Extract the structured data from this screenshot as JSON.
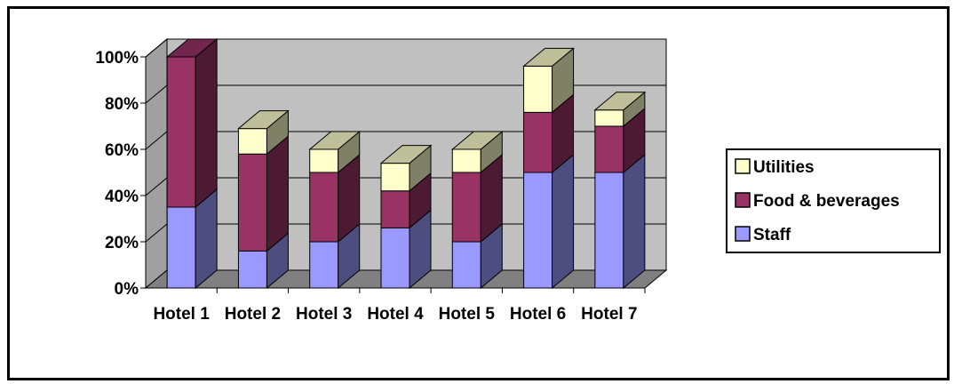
{
  "chart_data": {
    "type": "bar",
    "stacked": true,
    "three_d": true,
    "categories": [
      "Hotel 1",
      "Hotel 2",
      "Hotel 3",
      "Hotel 4",
      "Hotel 5",
      "Hotel 6",
      "Hotel 7"
    ],
    "series": [
      {
        "name": "Staff",
        "values": [
          35,
          16,
          20,
          26,
          20,
          50,
          50
        ],
        "color": "#9999ff"
      },
      {
        "name": "Food & beverages",
        "values": [
          65,
          42,
          30,
          16,
          30,
          26,
          20
        ],
        "color": "#993366"
      },
      {
        "name": "Utilities",
        "values": [
          0,
          11,
          10,
          12,
          10,
          20,
          7
        ],
        "color": "#ffffcc"
      }
    ],
    "ylim": [
      0,
      100
    ],
    "yticks": [
      "0%",
      "20%",
      "40%",
      "60%",
      "80%",
      "100%"
    ],
    "legend": {
      "position": "right",
      "order": [
        "Utilities",
        "Food & beverages",
        "Staff"
      ]
    },
    "grid": true,
    "wall_color": "#c0c0c0",
    "floor_color": "#808080"
  }
}
